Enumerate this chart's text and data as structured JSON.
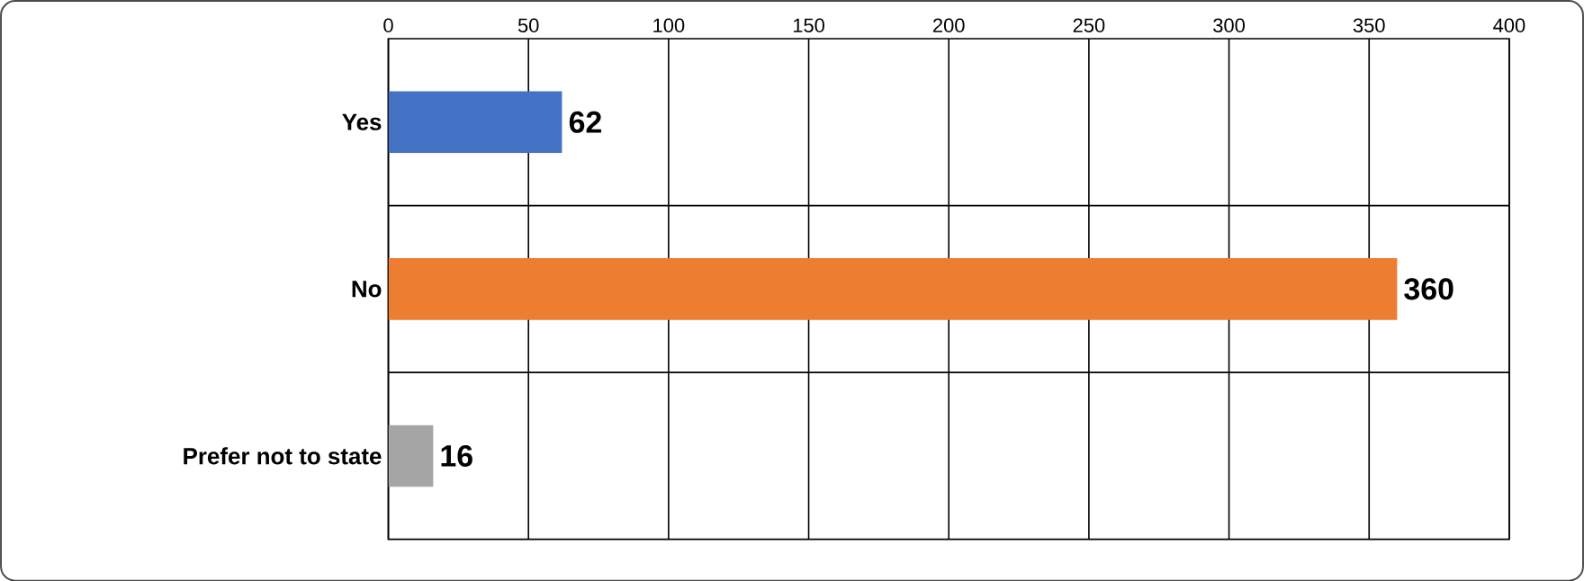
{
  "chart_data": {
    "type": "bar",
    "orientation": "horizontal",
    "categories": [
      "Yes",
      "No",
      "Prefer not to state"
    ],
    "values": [
      62,
      360,
      16
    ],
    "colors": [
      "#4472c4",
      "#ed7d31",
      "#a5a5a5"
    ],
    "xlim": [
      0,
      400
    ],
    "xticks": [
      0,
      50,
      100,
      150,
      200,
      250,
      300,
      350,
      400
    ],
    "grid": true,
    "data_labels": true
  }
}
